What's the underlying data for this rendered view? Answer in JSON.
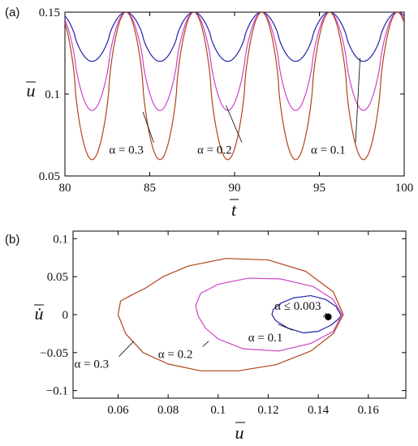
{
  "chart_data": [
    {
      "panel_label": "(a)",
      "type": "line",
      "xlabel": "t",
      "ylabel": "u",
      "xlim": [
        80,
        100
      ],
      "ylim": [
        0.05,
        0.15
      ],
      "xticks": [
        "80",
        "85",
        "90",
        "95",
        "100"
      ],
      "yticks": [
        "0.05",
        "0.1",
        "0.15"
      ],
      "grid": false,
      "period": 4,
      "peak_t": 83.6,
      "series": [
        {
          "name": "α = 0.1",
          "color": "#2222aa",
          "max": 0.15,
          "min": 0.12,
          "sharpness": 0.8
        },
        {
          "name": "α = 0.2",
          "color": "#cc44cc",
          "max": 0.15,
          "min": 0.09,
          "sharpness": 0.8
        },
        {
          "name": "α = 0.3",
          "color": "#b04418",
          "max": 0.15,
          "min": 0.06,
          "sharpness": 0.75
        }
      ],
      "annotations": [
        {
          "text": "α = 0.3",
          "series": "α = 0.3",
          "label_at": [
            82.6,
            0.0635
          ],
          "points_to": [
            84.6,
            0.089
          ]
        },
        {
          "text": "α = 0.2",
          "series": "α = 0.2",
          "label_at": [
            87.8,
            0.0635
          ],
          "points_to": [
            89.5,
            0.093
          ]
        },
        {
          "text": "α = 0.1",
          "series": "α = 0.1",
          "label_at": [
            94.5,
            0.0635
          ],
          "points_to": [
            97.4,
            0.122
          ]
        }
      ]
    },
    {
      "panel_label": "(b)",
      "type": "line",
      "xlabel": "u",
      "ylabel": "u̇",
      "xlim": [
        0.042,
        0.175
      ],
      "ylim": [
        -0.11,
        0.11
      ],
      "xticks": [
        "0.06",
        "0.08",
        "0.1",
        "0.12",
        "0.14",
        "0.16"
      ],
      "yticks": [
        "-0.1",
        "-0.05",
        "0",
        "0.05",
        "0.1"
      ],
      "grid": false,
      "series": [
        {
          "name": "α = 0.1",
          "color": "#2222aa",
          "x": [
            0.149,
            0.147,
            0.143,
            0.137,
            0.13,
            0.125,
            0.122,
            0.1215,
            0.123,
            0.128,
            0.134,
            0.14,
            0.145,
            0.148,
            0.149,
            0.149
          ],
          "y": [
            0,
            0.011,
            0.02,
            0.025,
            0.022,
            0.015,
            0.007,
            0,
            -0.008,
            -0.018,
            -0.024,
            -0.022,
            -0.014,
            -0.006,
            -0.002,
            0
          ]
        },
        {
          "name": "α = 0.2",
          "color": "#cc44cc",
          "x": [
            0.1495,
            0.146,
            0.138,
            0.125,
            0.112,
            0.1,
            0.093,
            0.091,
            0.092,
            0.095,
            0.1,
            0.11,
            0.124,
            0.137,
            0.146,
            0.1495
          ],
          "y": [
            0,
            0.02,
            0.037,
            0.047,
            0.048,
            0.04,
            0.028,
            0.012,
            -0.002,
            -0.018,
            -0.032,
            -0.045,
            -0.048,
            -0.038,
            -0.022,
            0
          ]
        },
        {
          "name": "α = 0.3",
          "color": "#b04418",
          "x": [
            0.15,
            0.146,
            0.135,
            0.12,
            0.103,
            0.088,
            0.078,
            0.071,
            0.065,
            0.061,
            0.06,
            0.063,
            0.07,
            0.08,
            0.093,
            0.108,
            0.123,
            0.137,
            0.146,
            0.15
          ],
          "y": [
            0,
            0.03,
            0.057,
            0.072,
            0.074,
            0.064,
            0.05,
            0.035,
            0.025,
            0.018,
            0,
            -0.025,
            -0.05,
            -0.065,
            -0.074,
            -0.074,
            -0.066,
            -0.048,
            -0.025,
            0
          ]
        }
      ],
      "point": {
        "x": 0.144,
        "y": -0.003,
        "label": "α ≤ 0.003"
      },
      "annotations": [
        {
          "text": "α = 0.3",
          "series": "α = 0.3",
          "label_at": [
            0.0425,
            -0.07
          ],
          "points_to": [
            0.0663,
            -0.035
          ]
        },
        {
          "text": "α = 0.2",
          "series": "α = 0.2",
          "label_at": [
            0.076,
            -0.057
          ],
          "points_to": [
            0.0962,
            -0.035
          ]
        },
        {
          "text": "α = 0.1",
          "series": "α = 0.1",
          "label_at": [
            0.112,
            -0.0355
          ],
          "points_to": [
            0.124,
            -0.0125
          ]
        },
        {
          "text": "α ≤ 0.003",
          "label_at": [
            0.1225,
            0.0065
          ],
          "points_to": [
            0.142,
            -0.0035
          ]
        }
      ]
    }
  ]
}
